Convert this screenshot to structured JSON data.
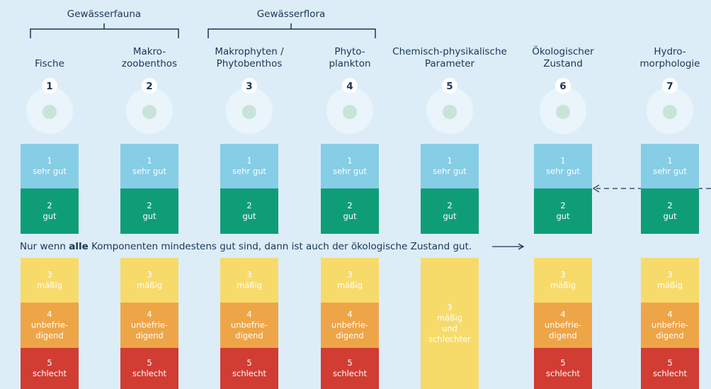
{
  "groups": [
    {
      "label": "Gewässerfauna"
    },
    {
      "label": "Gewässerflora"
    }
  ],
  "columns": [
    {
      "title": [
        "Fische"
      ],
      "number": "1",
      "classes": [
        {
          "number": "1",
          "label": [
            "sehr gut"
          ]
        },
        {
          "number": "2",
          "label": [
            "gut"
          ]
        },
        {
          "number": "3",
          "label": [
            "mäßig"
          ]
        },
        {
          "number": "4",
          "label": [
            "unbefrie-",
            "digend"
          ]
        },
        {
          "number": "5",
          "label": [
            "schlecht"
          ]
        }
      ]
    },
    {
      "title": [
        "Makro-",
        "zoobenthos"
      ],
      "number": "2",
      "classes": [
        {
          "number": "1",
          "label": [
            "sehr gut"
          ]
        },
        {
          "number": "2",
          "label": [
            "gut"
          ]
        },
        {
          "number": "3",
          "label": [
            "mäßig"
          ]
        },
        {
          "number": "4",
          "label": [
            "unbefrie-",
            "digend"
          ]
        },
        {
          "number": "5",
          "label": [
            "schlecht"
          ]
        }
      ]
    },
    {
      "title": [
        "Makrophyten /",
        "Phytobenthos"
      ],
      "number": "3",
      "classes": [
        {
          "number": "1",
          "label": [
            "sehr gut"
          ]
        },
        {
          "number": "2",
          "label": [
            "gut"
          ]
        },
        {
          "number": "3",
          "label": [
            "mäßig"
          ]
        },
        {
          "number": "4",
          "label": [
            "unbefrie-",
            "digend"
          ]
        },
        {
          "number": "5",
          "label": [
            "schlecht"
          ]
        }
      ]
    },
    {
      "title": [
        "Phyto-",
        "plankton"
      ],
      "number": "4",
      "classes": [
        {
          "number": "1",
          "label": [
            "sehr gut"
          ]
        },
        {
          "number": "2",
          "label": [
            "gut"
          ]
        },
        {
          "number": "3",
          "label": [
            "mäßig"
          ]
        },
        {
          "number": "4",
          "label": [
            "unbefrie-",
            "digend"
          ]
        },
        {
          "number": "5",
          "label": [
            "schlecht"
          ]
        }
      ]
    },
    {
      "title": [
        "Chemisch-physikalische",
        "Parameter"
      ],
      "number": "5",
      "classes": [
        {
          "number": "1",
          "label": [
            "sehr gut"
          ]
        },
        {
          "number": "2",
          "label": [
            "gut"
          ]
        },
        {
          "number": "3",
          "label": [
            "mäßig",
            "und",
            "schlechter"
          ]
        }
      ]
    },
    {
      "title": [
        "Ökologischer",
        "Zustand"
      ],
      "number": "6",
      "classes": [
        {
          "number": "1",
          "label": [
            "sehr gut"
          ]
        },
        {
          "number": "2",
          "label": [
            "gut"
          ]
        },
        {
          "number": "3",
          "label": [
            "mäßig"
          ]
        },
        {
          "number": "4",
          "label": [
            "unbefrie-",
            "digend"
          ]
        },
        {
          "number": "5",
          "label": [
            "schlecht"
          ]
        }
      ]
    },
    {
      "title": [
        "Hydro-",
        "morphologie"
      ],
      "number": "7",
      "classes": [
        {
          "number": "1",
          "label": [
            "sehr gut"
          ]
        },
        {
          "number": "2",
          "label": [
            "gut"
          ]
        },
        {
          "number": "3",
          "label": [
            "mäßig"
          ]
        },
        {
          "number": "4",
          "label": [
            "unbefrie-",
            "digend"
          ]
        },
        {
          "number": "5",
          "label": [
            "schlecht"
          ]
        }
      ]
    }
  ],
  "note": {
    "parts": [
      "Nur wenn ",
      "alle",
      " Komponenten mindestens gut sind, dann ist auch der ökologische Zustand gut."
    ]
  }
}
